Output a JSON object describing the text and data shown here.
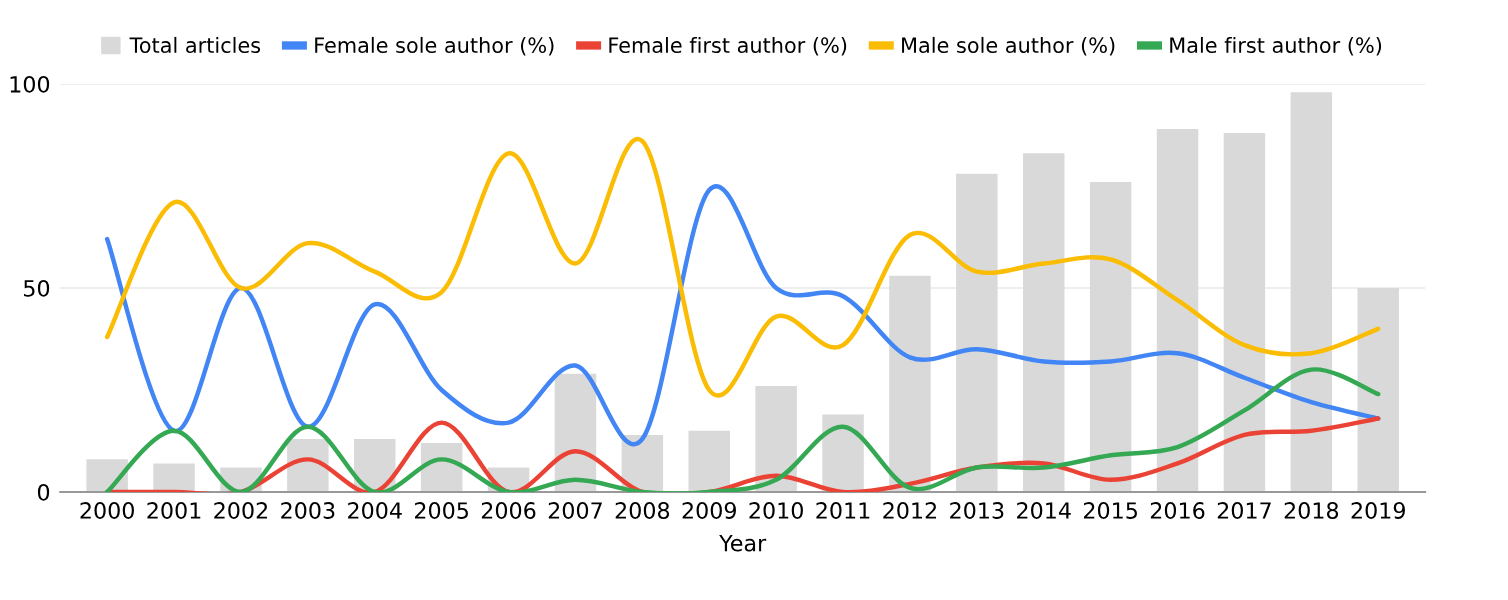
{
  "chart_data": {
    "type": "bar",
    "xlabel": "Year",
    "categories": [
      "2000",
      "2001",
      "2002",
      "2003",
      "2004",
      "2005",
      "2006",
      "2007",
      "2008",
      "2009",
      "2010",
      "2011",
      "2012",
      "2013",
      "2014",
      "2015",
      "2016",
      "2017",
      "2018",
      "2019"
    ],
    "series": [
      {
        "name": "Total articles",
        "color": "#d9d9d9",
        "values": [
          8,
          7,
          6,
          13,
          13,
          12,
          6,
          29,
          14,
          15,
          26,
          19,
          53,
          78,
          83,
          76,
          89,
          88,
          98,
          50
        ]
      },
      {
        "name": "Female sole author (%)",
        "type": "line",
        "color": "#4285f4",
        "values": [
          62,
          15,
          50,
          16,
          46,
          25,
          17,
          31,
          13,
          74,
          50,
          48,
          33,
          35,
          32,
          32,
          34,
          28,
          22,
          18
        ]
      },
      {
        "name": "Female first author (%)",
        "type": "line",
        "color": "#ea4335",
        "values": [
          0,
          0,
          0,
          8,
          0,
          17,
          0,
          10,
          0,
          0,
          4,
          0,
          2,
          6,
          7,
          3,
          7,
          14,
          15,
          18
        ]
      },
      {
        "name": "Male sole author (%)",
        "type": "line",
        "color": "#fbbc04",
        "values": [
          38,
          71,
          50,
          61,
          54,
          49,
          83,
          56,
          86,
          25,
          43,
          36,
          63,
          54,
          56,
          57,
          47,
          36,
          34,
          40
        ]
      },
      {
        "name": "Male first author (%)",
        "type": "line",
        "color": "#34a853",
        "values": [
          0,
          15,
          0,
          16,
          0,
          8,
          0,
          3,
          0,
          0,
          3,
          16,
          1,
          6,
          6,
          9,
          11,
          20,
          30,
          24
        ]
      }
    ],
    "ylim": [
      0,
      100
    ],
    "yticks": [
      0,
      50,
      100
    ],
    "grid": "y",
    "legend": "top",
    "marker": "none",
    "line_style": "solid"
  }
}
